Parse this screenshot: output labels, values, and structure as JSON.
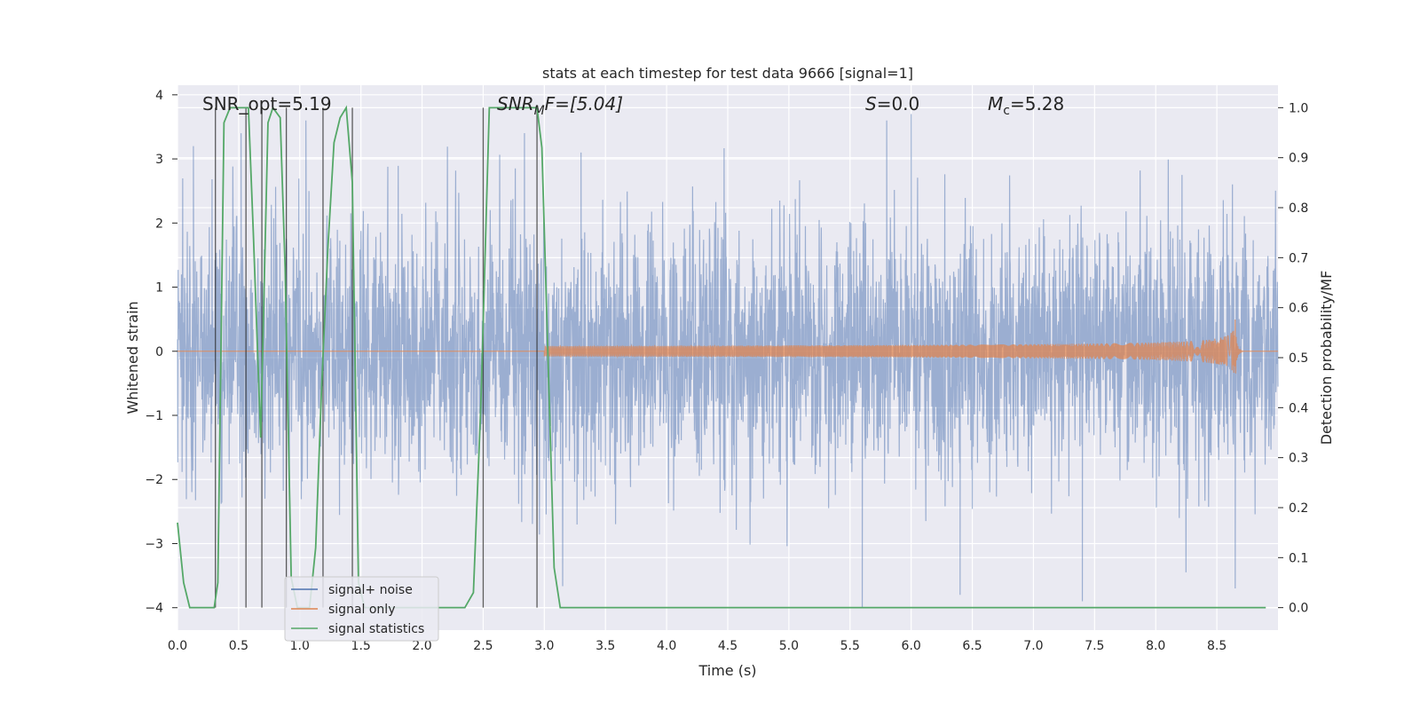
{
  "chart_data": {
    "type": "line",
    "title": "stats at each timestep for test data 9666 [signal=1]",
    "xlabel": "Time (s)",
    "ylabel": "Whitened strain",
    "y2label": "Detection probability/MF",
    "xlim": [
      0.0,
      9.0
    ],
    "ylim": [
      -4.35,
      4.15
    ],
    "y2lim": [
      -0.045,
      1.045
    ],
    "xticks": [
      "0.0",
      "0.5",
      "1.0",
      "1.5",
      "2.0",
      "2.5",
      "3.0",
      "3.5",
      "4.0",
      "4.5",
      "5.0",
      "5.5",
      "6.0",
      "6.5",
      "7.0",
      "7.5",
      "8.0",
      "8.5"
    ],
    "yticks": [
      "−4",
      "−3",
      "−2",
      "−1",
      "0",
      "1",
      "2",
      "3",
      "4"
    ],
    "y2ticks": [
      "0.0",
      "0.1",
      "0.2",
      "0.3",
      "0.4",
      "0.5",
      "0.6",
      "0.7",
      "0.8",
      "0.9",
      "1.0"
    ],
    "grid": true,
    "legend_position": "lower-left",
    "annotations": {
      "snr_opt": "SNR_opt=5.19",
      "snr_mf_main": "SNR",
      "snr_mf_sub": "M",
      "snr_mf_rest": "F=[5.04]",
      "s_main": "S",
      "s_rest": "=0.0",
      "mc_main": "M",
      "mc_sub": "c",
      "mc_rest": "=5.28"
    },
    "series": [
      {
        "name": "signal+ noise",
        "color": "#4c72b0",
        "kind": "noise",
        "noise_std": 1.0,
        "peaks": [
          [
            0.13,
            3.2
          ],
          [
            0.52,
            3.4
          ],
          [
            1.05,
            3.6
          ],
          [
            3.3,
            3.1
          ],
          [
            5.8,
            3.6
          ],
          [
            6.0,
            3.7
          ],
          [
            5.6,
            -4.0
          ],
          [
            6.4,
            -3.8
          ],
          [
            7.4,
            -3.9
          ],
          [
            8.65,
            -3.7
          ]
        ]
      },
      {
        "name": "signal only",
        "color": "#dd8452",
        "kind": "chirp",
        "chirp_start": 3.0,
        "merger_time": 8.65,
        "peak_amplitude": 0.5
      },
      {
        "name": "signal statistics",
        "color": "#55a868",
        "axis": "right",
        "x": [
          0.0,
          0.05,
          0.1,
          0.15,
          0.3,
          0.33,
          0.38,
          0.43,
          0.58,
          0.62,
          0.68,
          0.74,
          0.78,
          0.84,
          0.88,
          0.93,
          0.98,
          1.03,
          1.08,
          1.13,
          1.18,
          1.23,
          1.28,
          1.33,
          1.38,
          1.43,
          1.48,
          1.53,
          2.35,
          2.42,
          2.48,
          2.55,
          2.6,
          2.65,
          2.94,
          2.98,
          3.03,
          3.08,
          3.13,
          3.2,
          8.9
        ],
        "y": [
          0.17,
          0.05,
          0.0,
          0.0,
          0.0,
          0.05,
          0.97,
          1.0,
          1.0,
          0.75,
          0.34,
          0.97,
          1.0,
          0.98,
          0.68,
          0.06,
          0.0,
          0.0,
          0.0,
          0.12,
          0.45,
          0.72,
          0.93,
          0.98,
          1.0,
          0.85,
          0.05,
          0.0,
          0.0,
          0.03,
          0.4,
          1.0,
          1.0,
          1.0,
          1.0,
          0.92,
          0.5,
          0.08,
          0.0,
          0.0,
          0.0
        ]
      }
    ],
    "vlines": {
      "color": "#2a2a2a",
      "x": [
        0.31,
        0.56,
        0.69,
        0.89,
        1.19,
        1.43,
        2.5,
        2.94
      ]
    }
  }
}
